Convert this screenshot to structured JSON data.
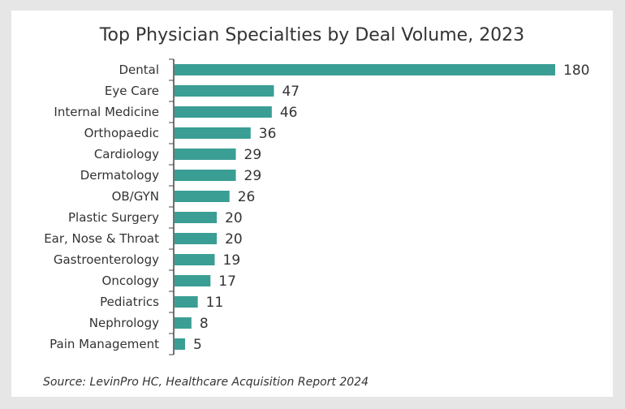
{
  "chart_data": {
    "type": "bar",
    "orientation": "horizontal",
    "title": "Top Physician Specialties by Deal Volume, 2023",
    "categories": [
      "Dental",
      "Eye Care",
      "Internal Medicine",
      "Orthopaedic",
      "Cardiology",
      "Dermatology",
      "OB/GYN",
      "Plastic Surgery",
      "Ear, Nose & Throat",
      "Gastroenterology",
      "Oncology",
      "Pediatrics",
      "Nephrology",
      "Pain Management"
    ],
    "values": [
      180,
      47,
      46,
      36,
      29,
      29,
      26,
      20,
      20,
      19,
      17,
      11,
      8,
      5
    ],
    "xlabel": "",
    "ylabel": "",
    "xlim": [
      0,
      180
    ],
    "bar_color": "#3a9e94",
    "grid": false
  },
  "source": "Source: LevinPro HC, Healthcare Acquisition Report 2024"
}
